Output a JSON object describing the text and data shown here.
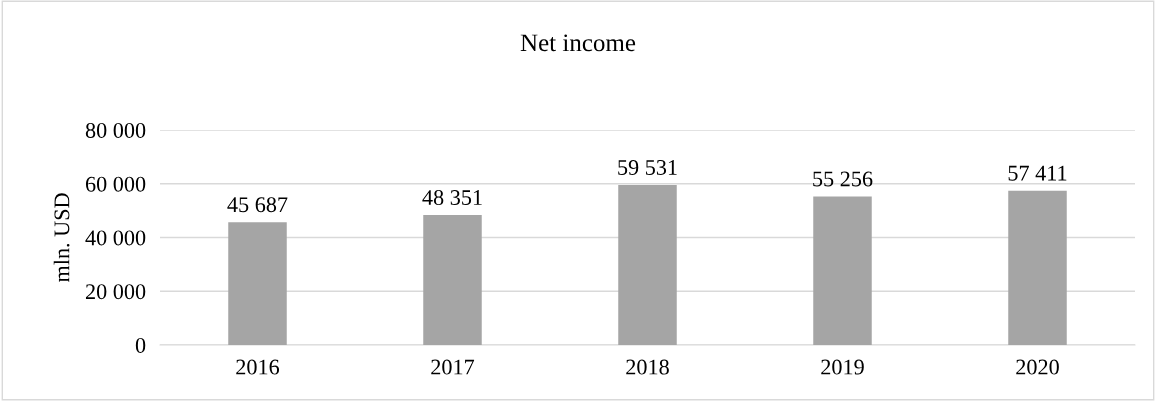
{
  "chart_data": {
    "type": "bar",
    "title": "Net income",
    "ylabel": "mln. USD",
    "categories": [
      "2016",
      "2017",
      "2018",
      "2019",
      "2020"
    ],
    "values": [
      45687,
      48351,
      59531,
      55256,
      57411
    ],
    "value_labels": [
      "45 687",
      "48 351",
      "59 531",
      "55 256",
      "57 411"
    ],
    "color": "#a5a5a5",
    "ylim": [
      0,
      80000
    ],
    "yticks": [
      {
        "value": 0,
        "label": "0"
      },
      {
        "value": 20000,
        "label": "20 000"
      },
      {
        "value": 40000,
        "label": "40 000"
      },
      {
        "value": 60000,
        "label": "60 000"
      },
      {
        "value": 80000,
        "label": "80 000"
      }
    ],
    "grid": "y"
  }
}
